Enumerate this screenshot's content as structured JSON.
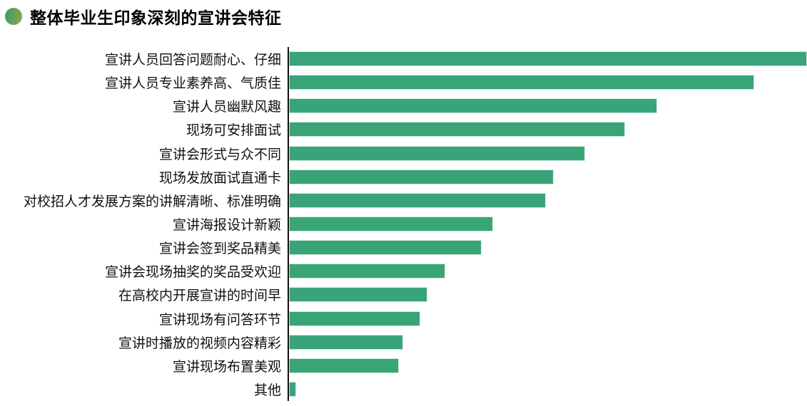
{
  "header": {
    "bullet_icon": "green-gradient-circle-icon",
    "title": "整体毕业生印象深刻的宣讲会特征"
  },
  "colors": {
    "background": "#ffffff",
    "bar": "#3aa479",
    "bar_outline": "#cfe9dc",
    "axis_line": "#111111",
    "title_text": "#000000",
    "bullet_gradient_start": "#3fa068",
    "bullet_gradient_end": "#8ea04f"
  },
  "chart_data": {
    "type": "bar",
    "orientation": "horizontal",
    "title": "整体毕业生印象深刻的宣讲会特征",
    "xlabel": "",
    "ylabel": "",
    "axis_tick_labels_visible": false,
    "grid": false,
    "legend": false,
    "value_unit": "percent-of-longest-bar (axis unlabeled in screenshot; lengths measured from pixels)",
    "xlim": [
      0,
      100
    ],
    "categories": [
      "宣讲人员回答问题耐心、仔细",
      "宣讲人员专业素养高、气质佳",
      "宣讲人员幽默风趣",
      "现场可安排面试",
      "宣讲会形式与众不同",
      "现场发放面试直通卡",
      "对校招人才发展方案的讲解清晰、标准明确",
      "宣讲海报设计新颖",
      "宣讲会签到奖品精美",
      "宣讲会现场抽奖的奖品受欢迎",
      "在高校内开展宣讲的时间早",
      "宣讲现场有问答环节",
      "宣讲时播放的视频内容精彩",
      "宣讲现场布置美观",
      "其他"
    ],
    "values": [
      100,
      89.8,
      71.1,
      64.9,
      57.2,
      51.1,
      49.6,
      39.4,
      37.2,
      30.2,
      26.7,
      25.3,
      22.0,
      21.2,
      1.4
    ],
    "bar_color": "#3aa479"
  }
}
